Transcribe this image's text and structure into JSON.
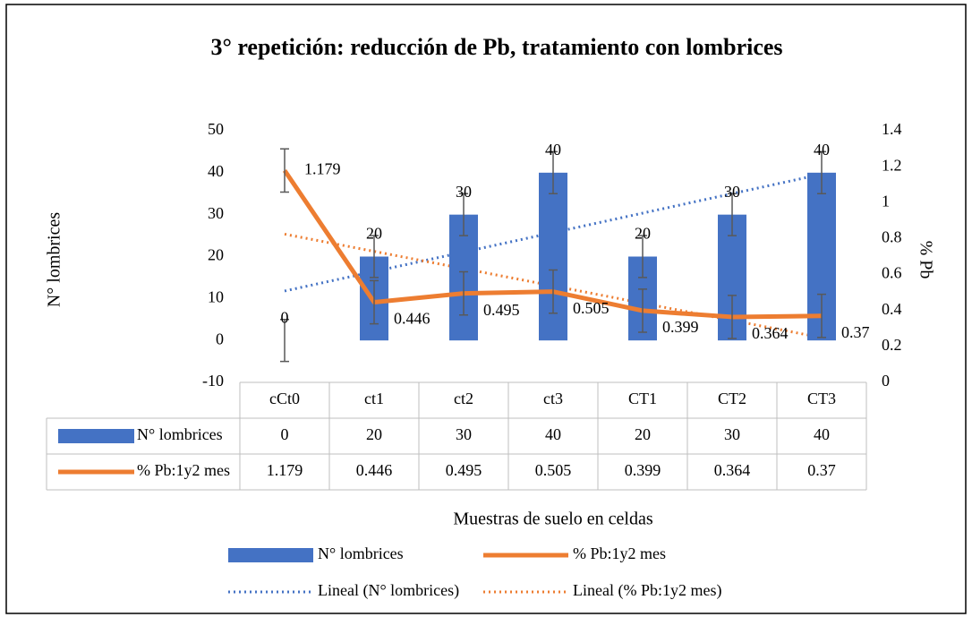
{
  "chart_data": {
    "type": "bar_line",
    "title": "3° repetición: reducción de Pb, tratamiento con lombrices",
    "xlabel": "Muestras de suelo en celdas",
    "ylabel": "N° lombrices",
    "y2label": "% Pb",
    "categories": [
      "cCt0",
      "ct1",
      "ct2",
      "ct3",
      "CT1",
      "CT2",
      "CT3"
    ],
    "series": [
      {
        "name": "N° lombrices",
        "type": "bar",
        "color": "#4472c4",
        "values": [
          0,
          20,
          30,
          40,
          20,
          30,
          40
        ],
        "error": 5,
        "trendline": "Lineal (N° lombrices)"
      },
      {
        "name": "% Pb:1y2 mes",
        "type": "line",
        "axis": "y2",
        "color": "#ed7d31",
        "values": [
          1.179,
          0.446,
          0.495,
          0.505,
          0.399,
          0.364,
          0.37
        ],
        "error": 0.12,
        "trendline": "Lineal (% Pb:1y2 mes)"
      }
    ],
    "ylim": [
      -10,
      50
    ],
    "yticks": [
      -10,
      0,
      10,
      20,
      30,
      40,
      50
    ],
    "y2lim": [
      0,
      1.4
    ],
    "y2ticks": [
      0,
      0.2,
      0.4,
      0.6,
      0.8,
      1,
      1.2,
      1.4
    ],
    "grid": false,
    "data_table": true
  }
}
